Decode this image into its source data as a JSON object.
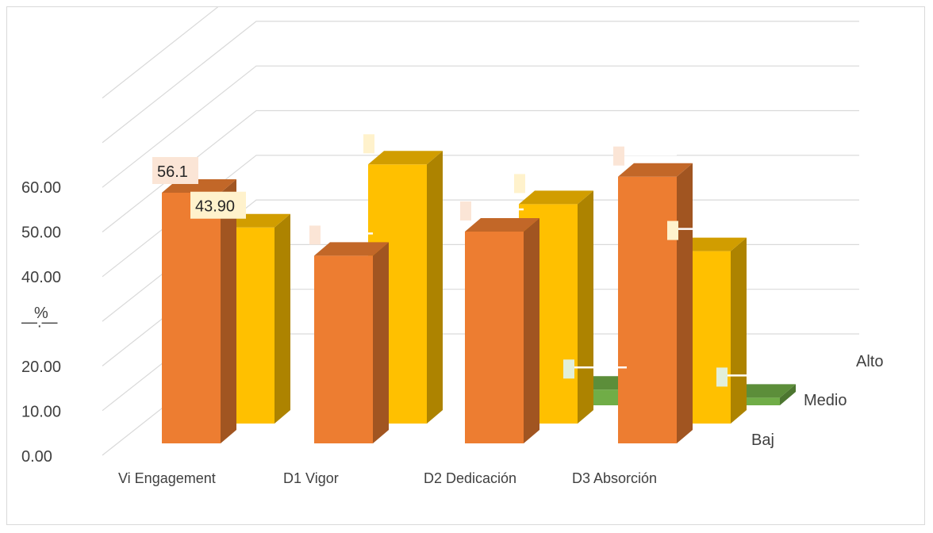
{
  "chart_data": {
    "type": "bar",
    "style": "3d-column",
    "categories": [
      "Vi Engagement",
      "D1 Vigor",
      "D2 Dedicación",
      "D3 Absorción"
    ],
    "series": [
      {
        "name": "Baj",
        "color": "#ED7D31",
        "values": [
          56.1,
          42.0,
          47.4,
          59.7
        ],
        "labels": [
          "56.1",
          "",
          "",
          ""
        ]
      },
      {
        "name": "Medio",
        "color": "#FFC000",
        "values": [
          43.9,
          58.0,
          49.1,
          38.6
        ],
        "labels": [
          "43.90",
          "",
          "",
          ""
        ]
      },
      {
        "name": "Alto",
        "color": "#70AD47",
        "values": [
          0,
          0,
          3.5,
          1.7
        ],
        "labels": [
          "",
          "",
          "",
          ""
        ]
      }
    ],
    "y_ticks": [
      "0.00",
      "10.00",
      "20.00",
      "—.—",
      "40.00",
      "50.00",
      "60.00"
    ],
    "ylabel": "%",
    "ylim": [
      0,
      60
    ],
    "grid": true,
    "legend": "none"
  }
}
